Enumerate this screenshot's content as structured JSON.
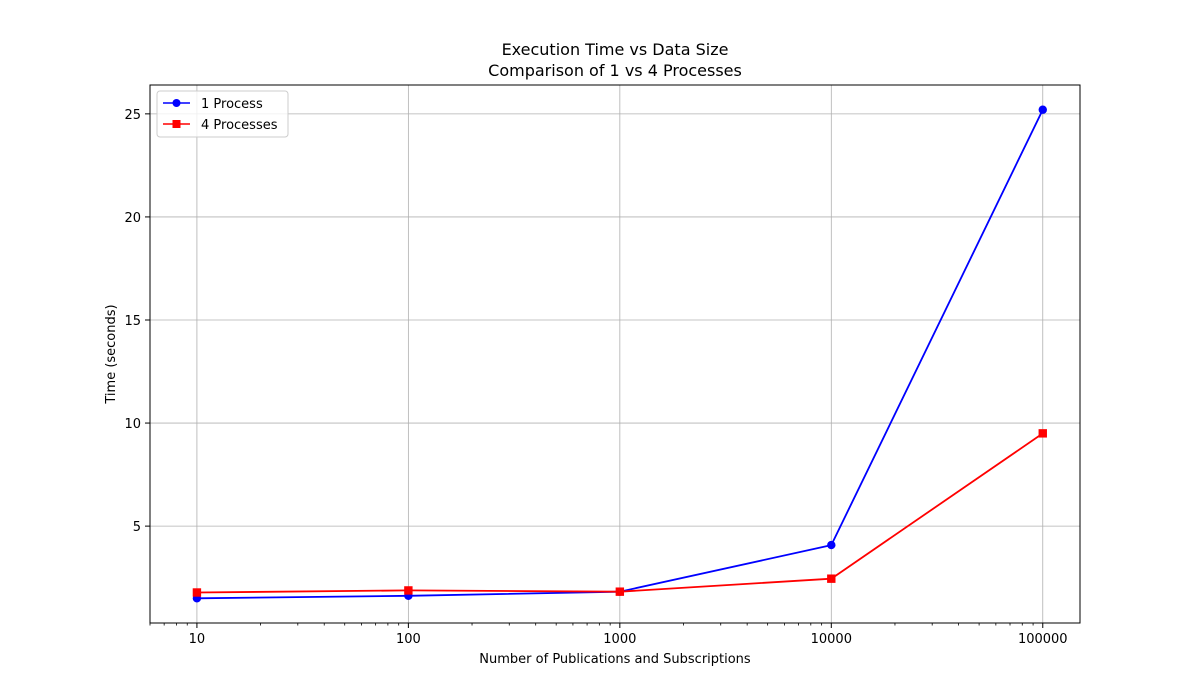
{
  "chart_data": {
    "type": "line",
    "title": "Execution Time vs Data Size",
    "subtitle": "Comparison of 1 vs 4 Processes",
    "xlabel": "Number of Publications and Subscriptions",
    "ylabel": "Time (seconds)",
    "x": [
      10,
      100,
      1000,
      10000,
      100000
    ],
    "x_scale": "log",
    "xlim": [
      6,
      150000
    ],
    "ylim": [
      0.3,
      26.4
    ],
    "x_ticks": [
      "10",
      "100",
      "1000",
      "10000",
      "100000"
    ],
    "y_ticks": [
      "5",
      "10",
      "15",
      "20",
      "25"
    ],
    "grid": true,
    "legend_position": "top-left",
    "series": [
      {
        "name": "1 Process",
        "color": "#0000ff",
        "marker": "circle",
        "values": [
          1.5,
          1.62,
          1.82,
          4.08,
          25.2
        ]
      },
      {
        "name": "4 Processes",
        "color": "#ff0000",
        "marker": "square",
        "values": [
          1.78,
          1.88,
          1.82,
          2.45,
          9.5
        ]
      }
    ]
  }
}
